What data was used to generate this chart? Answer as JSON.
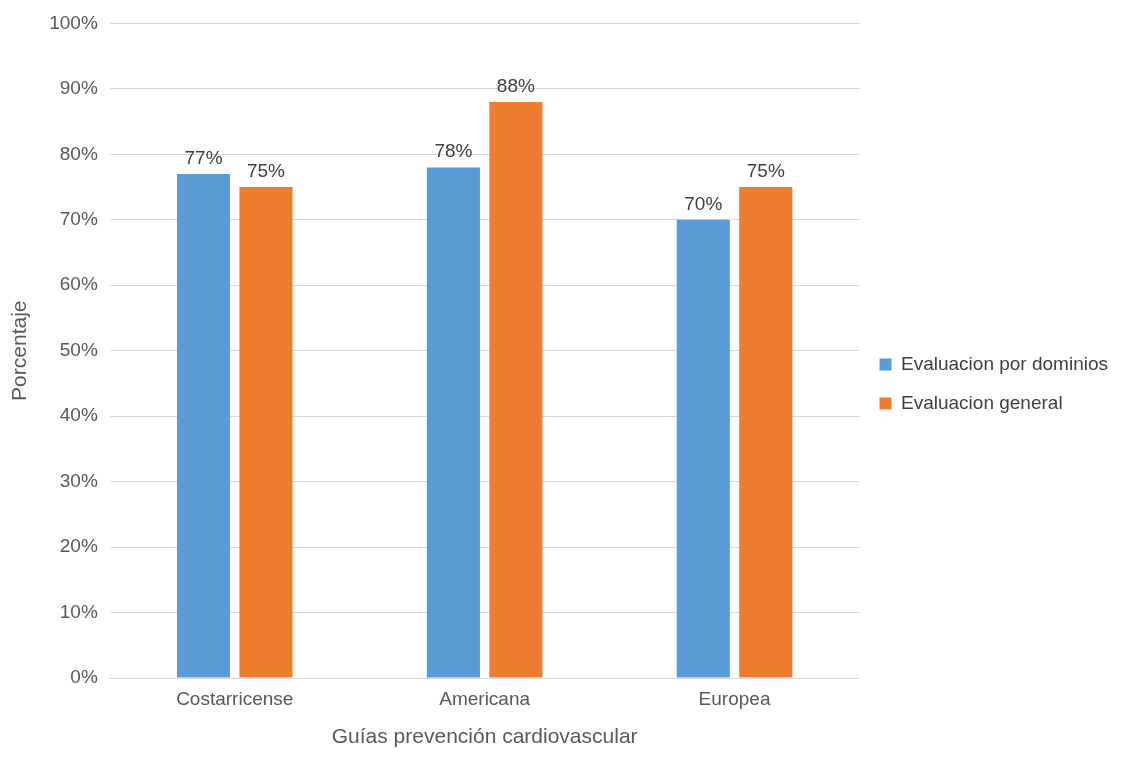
{
  "chart_data": {
    "type": "bar",
    "categories": [
      "Costarricense",
      "Americana",
      "Europea"
    ],
    "series": [
      {
        "name": "Evaluacion por dominios",
        "color": "#5b9bd5",
        "values": [
          77,
          78,
          70
        ],
        "value_labels": [
          "77%",
          "78%",
          "70%"
        ]
      },
      {
        "name": "Evaluacion general",
        "color": "#ed7d31",
        "values": [
          75,
          88,
          75
        ],
        "value_labels": [
          "75%",
          "88%",
          "75%"
        ]
      }
    ],
    "xlabel": "Guías prevención cardiovascular",
    "ylabel": "Porcentaje",
    "ylim": [
      0,
      100
    ],
    "yticks": [
      {
        "value": 0,
        "label": "0%"
      },
      {
        "value": 10,
        "label": "10%"
      },
      {
        "value": 20,
        "label": "20%"
      },
      {
        "value": 30,
        "label": "30%"
      },
      {
        "value": 40,
        "label": "40%"
      },
      {
        "value": 50,
        "label": "50%"
      },
      {
        "value": 60,
        "label": "60%"
      },
      {
        "value": 70,
        "label": "70%"
      },
      {
        "value": 80,
        "label": "80%"
      },
      {
        "value": 90,
        "label": "90%"
      },
      {
        "value": 100,
        "label": "100%"
      }
    ],
    "grid": "y",
    "legend": "right"
  }
}
